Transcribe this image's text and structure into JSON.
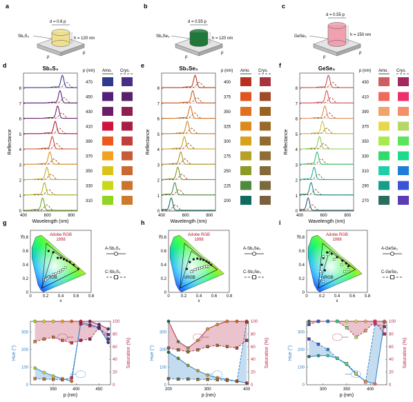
{
  "panels": [
    {
      "letter": "a",
      "material": "Sb₂S₃",
      "d_label": "d = 0.6 p",
      "h_label": "h = 120 nm",
      "p_label": "p",
      "pillar_color": "#efe08f",
      "title": "Sb₂S₃",
      "p_values": [
        470,
        450,
        430,
        410,
        390,
        370,
        350,
        330,
        310
      ],
      "amo_colors": [
        "#2f3a8c",
        "#531f7b",
        "#6b1f6a",
        "#d0123f",
        "#ee5a1c",
        "#f2a21d",
        "#d9c41c",
        "#c8d91b",
        "#8fd61e"
      ],
      "crys_colors": [
        "#4a2e86",
        "#5a1f6b",
        "#8e1f4f",
        "#a81d45",
        "#c23f3c",
        "#c75b38",
        "#c96a32",
        "#cb742e",
        "#cc7b2c"
      ],
      "line_colors": [
        "#2f3a8c",
        "#531f7b",
        "#6b1f6a",
        "#b01a3b",
        "#d0452a",
        "#d98e22",
        "#c4ad22",
        "#a9b520",
        "#6bab20"
      ],
      "peaks": [
        725,
        705,
        685,
        665,
        640,
        620,
        595,
        575,
        560
      ],
      "chroma": {
        "rgb_label": "Adobe RGB",
        "year": "1998",
        "srgb_label": "sRGB",
        "legend_a": "A-Sb₂S₃",
        "legend_c": "C-Sb₂S₃",
        "amo_xy": [
          [
            0.52,
            0.44
          ],
          [
            0.57,
            0.4
          ],
          [
            0.48,
            0.46
          ],
          [
            0.44,
            0.48
          ],
          [
            0.4,
            0.5
          ],
          [
            0.36,
            0.5
          ],
          [
            0.3,
            0.58
          ],
          [
            0.24,
            0.6
          ],
          [
            0.63,
            0.34
          ]
        ],
        "crys_xy": [
          [
            0.4,
            0.31
          ],
          [
            0.43,
            0.33
          ],
          [
            0.37,
            0.29
          ],
          [
            0.33,
            0.27
          ],
          [
            0.3,
            0.26
          ],
          [
            0.24,
            0.22
          ],
          [
            0.22,
            0.2
          ],
          [
            0.2,
            0.18
          ],
          [
            0.46,
            0.36
          ]
        ]
      },
      "hs": {
        "p": [
          310,
          330,
          350,
          370,
          390,
          410,
          430,
          450,
          470
        ],
        "xlim": [
          300,
          475
        ],
        "xticks": [
          350,
          400,
          450
        ],
        "hue_amo": [
          95,
          70,
          50,
          35,
          20,
          355,
          340,
          325,
          240
        ],
        "hue_crys": [
          35,
          32,
          30,
          28,
          40,
          345,
          335,
          320,
          285
        ],
        "sat_amo": [
          100,
          100,
          100,
          100,
          100,
          100,
          100,
          95,
          88
        ],
        "sat_crys": [
          68,
          72,
          75,
          70,
          66,
          70,
          72,
          90,
          72
        ]
      }
    },
    {
      "letter": "b",
      "material": "Sb₂Se₃",
      "d_label": "d = 0.55 p",
      "h_label": "h = 120 nm",
      "p_label": "p",
      "pillar_color": "#1f7a3a",
      "title": "Sb₂Se₃",
      "p_values": [
        400,
        375,
        350,
        325,
        300,
        275,
        250,
        225,
        200
      ],
      "amo_colors": [
        "#b8311f",
        "#e0551f",
        "#e3701c",
        "#dc8a1d",
        "#d9a21d",
        "#b8a024",
        "#8c9a27",
        "#4f8a3f",
        "#0f6b5e"
      ],
      "crys_colors": [
        "#a8323e",
        "#a04a2a",
        "#9e6220",
        "#99682a",
        "#946b2e",
        "#8e6e36",
        "#846a3c",
        "#7c6a3e",
        "#7a6040"
      ],
      "line_colors": [
        "#b8311f",
        "#cc5a1e",
        "#d4701d",
        "#d4861d",
        "#c99a1e",
        "#a89423",
        "#7f8e28",
        "#4f8a3f",
        "#0f6b5e"
      ],
      "peaks": [
        680,
        660,
        640,
        615,
        590,
        560,
        535,
        510,
        480
      ],
      "chroma": {
        "rgb_label": "Adobe RGB",
        "year": "1998",
        "srgb_label": "sRGB",
        "legend_a": "A-Sb₂Se₃",
        "legend_c": "C-Sb₂Se₃",
        "amo_xy": [
          [
            0.56,
            0.4
          ],
          [
            0.53,
            0.43
          ],
          [
            0.5,
            0.45
          ],
          [
            0.46,
            0.47
          ],
          [
            0.42,
            0.48
          ],
          [
            0.38,
            0.49
          ],
          [
            0.33,
            0.48
          ],
          [
            0.28,
            0.44
          ],
          [
            0.24,
            0.34
          ]
        ],
        "crys_xy": [
          [
            0.52,
            0.37
          ],
          [
            0.5,
            0.38
          ],
          [
            0.47,
            0.37
          ],
          [
            0.44,
            0.36
          ],
          [
            0.41,
            0.35
          ],
          [
            0.38,
            0.34
          ],
          [
            0.35,
            0.33
          ],
          [
            0.32,
            0.31
          ],
          [
            0.3,
            0.3
          ]
        ]
      },
      "hs": {
        "p": [
          200,
          225,
          250,
          275,
          300,
          325,
          350,
          375,
          400
        ],
        "xlim": [
          200,
          405
        ],
        "xticks": [
          200,
          300,
          400
        ],
        "hue_amo": [
          185,
          150,
          110,
          80,
          55,
          40,
          30,
          20,
          10
        ],
        "hue_crys": [
          35,
          32,
          32,
          30,
          30,
          28,
          25,
          20,
          355
        ],
        "sat_amo": [
          100,
          68,
          58,
          70,
          88,
          95,
          100,
          100,
          100
        ],
        "sat_crys": [
          58,
          55,
          52,
          55,
          60,
          62,
          60,
          58,
          70
        ]
      }
    },
    {
      "letter": "c",
      "material": "GeSe₃",
      "d_label": "d = 0.55 p",
      "h_label": "h = 250 nm",
      "p_label": "p",
      "pillar_color": "#f0a0ae",
      "title": "GeSe₃",
      "p_values": [
        430,
        410,
        390,
        370,
        350,
        330,
        310,
        290,
        270
      ],
      "amo_colors": [
        "#cf5e62",
        "#ef6a5c",
        "#f2a36a",
        "#e6d84a",
        "#a9ea4c",
        "#2fdc6b",
        "#1fcfa6",
        "#159f8b",
        "#2b6e5f"
      ],
      "crys_colors": [
        "#a3285f",
        "#ef2f6c",
        "#f38f6a",
        "#b7d66a",
        "#59e65c",
        "#1fd98e",
        "#1f7fd6",
        "#3a55d8",
        "#5a3db2"
      ],
      "line_colors": [
        "#c24a55",
        "#d9525a",
        "#e08a55",
        "#ccc040",
        "#86cf3d",
        "#2fc068",
        "#1fb09a",
        "#158a80",
        "#2b5e72"
      ],
      "peaks": [
        640,
        625,
        610,
        590,
        565,
        545,
        520,
        495,
        470
      ],
      "chroma": {
        "rgb_label": "Adobe RGB",
        "year": "1998",
        "srgb_label": "sRGB",
        "legend_a": "A-GeSe₃",
        "legend_c": "C-GeSe₃",
        "amo_xy": [
          [
            0.55,
            0.38
          ],
          [
            0.52,
            0.42
          ],
          [
            0.47,
            0.46
          ],
          [
            0.4,
            0.51
          ],
          [
            0.33,
            0.56
          ],
          [
            0.27,
            0.58
          ],
          [
            0.22,
            0.5
          ],
          [
            0.2,
            0.4
          ],
          [
            0.24,
            0.32
          ]
        ],
        "crys_xy": [
          [
            0.5,
            0.3
          ],
          [
            0.55,
            0.33
          ],
          [
            0.46,
            0.4
          ],
          [
            0.36,
            0.48
          ],
          [
            0.28,
            0.55
          ],
          [
            0.22,
            0.52
          ],
          [
            0.18,
            0.3
          ],
          [
            0.18,
            0.2
          ],
          [
            0.22,
            0.16
          ]
        ]
      },
      "hs": {
        "p": [
          270,
          290,
          310,
          330,
          350,
          370,
          390,
          410,
          430
        ],
        "xlim": [
          265,
          435
        ],
        "xticks": [
          300,
          350,
          400
        ],
        "hue_amo": [
          160,
          165,
          165,
          150,
          115,
          60,
          20,
          5,
          355
        ],
        "hue_crys": [
          260,
          230,
          200,
          150,
          120,
          65,
          15,
          345,
          330
        ],
        "sat_amo": [
          100,
          100,
          100,
          100,
          100,
          100,
          100,
          100,
          100
        ],
        "sat_crys": [
          95,
          100,
          100,
          100,
          90,
          75,
          85,
          100,
          80
        ]
      }
    }
  ],
  "labels": {
    "reflectance": "Reflectance",
    "wavelength": "Wavelength (nm)",
    "p_nm": "p (nm)",
    "amo": "Amo.",
    "crys": "Crys.",
    "hue": "Hue (°)",
    "saturation": "Saturation (%)",
    "p_axis": "p (nm)",
    "x": "x",
    "y": "y"
  },
  "letters_lower": [
    "d",
    "e",
    "f"
  ],
  "letters_bottom": [
    "g",
    "h",
    "i"
  ],
  "refl_yticks": [
    0,
    1,
    2,
    3,
    4,
    5,
    6,
    7,
    8
  ],
  "wl_ticks": [
    400,
    600,
    800
  ],
  "hue_ticks": [
    0,
    100,
    200,
    300
  ],
  "sat_ticks": [
    0,
    20,
    40,
    60,
    80,
    100
  ],
  "cie_ticks": [
    0,
    0.2,
    0.4,
    0.6,
    0.8
  ],
  "colors": {
    "hue_axis": "#2a7fc8",
    "sat_axis": "#b02a47",
    "hue_fill": "#a9cde8",
    "sat_fill": "#e2aab6"
  }
}
